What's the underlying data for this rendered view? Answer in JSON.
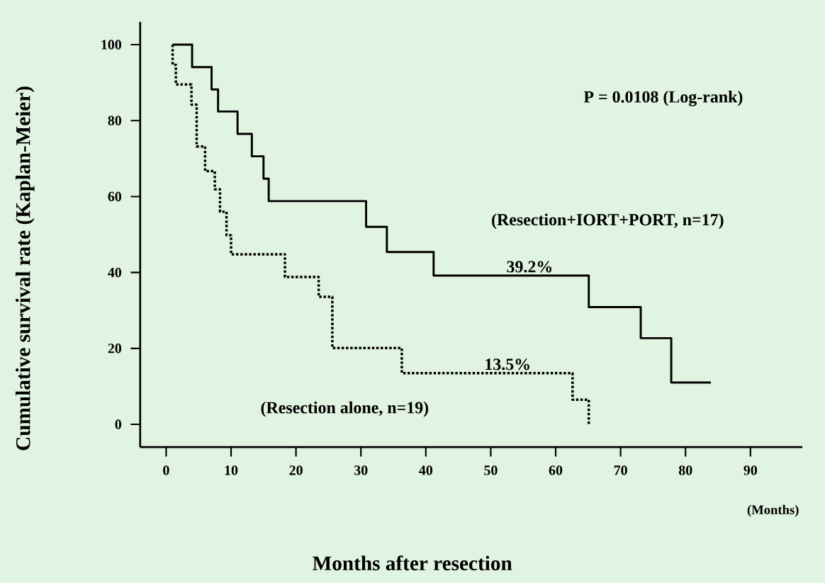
{
  "chart_data": {
    "type": "step",
    "xlabel": "Months after resection",
    "ylabel": "Cumulative survival rate (Kaplan-Meier)",
    "xlim": [
      -4,
      98
    ],
    "ylim": [
      -6,
      106
    ],
    "xticks": [
      0,
      10,
      20,
      30,
      40,
      50,
      60,
      70,
      80,
      90
    ],
    "yticks": [
      0,
      20,
      40,
      60,
      80,
      100
    ],
    "grid": false,
    "legend": false,
    "series": [
      {
        "name": "(Resection+IORT+PORT, n=17)",
        "color": "#000000",
        "line_style": "solid",
        "x": [
          1,
          4,
          7,
          8,
          11,
          13.2,
          15,
          15.8,
          30.8,
          34,
          41.2,
          65.1,
          73.1,
          77.8,
          83.9
        ],
        "values": [
          100,
          94.1,
          88.2,
          82.4,
          76.5,
          70.6,
          64.7,
          58.8,
          52,
          45.4,
          39.2,
          30.9,
          22.7,
          11,
          11
        ]
      },
      {
        "name": "(Resection alone, n=19)",
        "color": "#000000",
        "line_style": "dotted",
        "x": [
          1,
          1,
          1.5,
          3.9,
          4.7,
          6,
          7.5,
          8.3,
          9.3,
          10,
          18.3,
          23.5,
          25.6,
          36.3,
          62.6,
          65.1
        ],
        "values": [
          100,
          94.7,
          89.5,
          84.2,
          73.2,
          66.7,
          61.9,
          56,
          49.8,
          44.8,
          38.8,
          33.6,
          20.1,
          13.5,
          6.5,
          0
        ]
      }
    ],
    "annotations": [
      "P = 0.0108 (Log-rank)",
      "(Months)",
      {
        "text": "39.2%",
        "x": 56,
        "y": 39.2
      },
      {
        "text": "13.5%",
        "x": 52.6,
        "y": 13.5
      }
    ]
  }
}
